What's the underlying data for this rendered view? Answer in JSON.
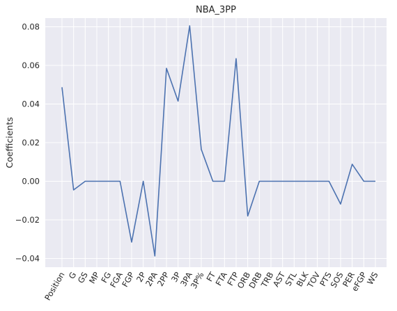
{
  "chart_data": {
    "type": "line",
    "title": "NBA_3PP",
    "xlabel": "",
    "ylabel": "Coefficients",
    "categories": [
      "Position",
      "G",
      "GS",
      "MP",
      "FG",
      "FGA",
      "FGP",
      "2P",
      "2PA",
      "2PP",
      "3P",
      "3PA",
      "3P%",
      "FT",
      "FTA",
      "FTP",
      "ORB",
      "DRB",
      "TRB",
      "AST",
      "STL",
      "BLK",
      "TOV",
      "PTS",
      "SOS",
      "PER",
      "eFGP",
      "WS"
    ],
    "series": [
      {
        "values": [
          0.0487,
          -0.0045,
          0.0,
          0.0,
          0.0,
          0.0,
          -0.0315,
          0.0,
          -0.0387,
          0.0585,
          0.0415,
          0.0805,
          0.0165,
          0.0,
          0.0,
          0.0635,
          -0.018,
          0.0,
          0.0,
          0.0,
          0.0,
          0.0,
          0.0,
          0.0,
          -0.0118,
          0.0088,
          0.0,
          0.0
        ]
      }
    ],
    "yticks": [
      -0.04,
      -0.02,
      0.0,
      0.02,
      0.04,
      0.06,
      0.08
    ],
    "ytick_labels": [
      "−0.04",
      "−0.02",
      "0.00",
      "0.02",
      "0.04",
      "0.06",
      "0.08"
    ],
    "ylim": [
      -0.0445,
      0.0845
    ],
    "grid": true,
    "colors": {
      "background": "#eaeaf2",
      "grid": "#ffffff",
      "line": "#4c72b0"
    }
  }
}
